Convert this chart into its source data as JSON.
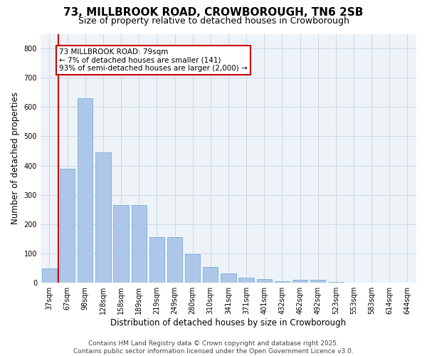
{
  "title_line1": "73, MILLBROOK ROAD, CROWBOROUGH, TN6 2SB",
  "title_line2": "Size of property relative to detached houses in Crowborough",
  "xlabel": "Distribution of detached houses by size in Crowborough",
  "ylabel": "Number of detached properties",
  "categories": [
    "37sqm",
    "67sqm",
    "98sqm",
    "128sqm",
    "158sqm",
    "189sqm",
    "219sqm",
    "249sqm",
    "280sqm",
    "310sqm",
    "341sqm",
    "371sqm",
    "401sqm",
    "432sqm",
    "462sqm",
    "492sqm",
    "523sqm",
    "553sqm",
    "583sqm",
    "614sqm",
    "644sqm"
  ],
  "values": [
    48,
    390,
    630,
    445,
    265,
    265,
    155,
    155,
    97,
    55,
    33,
    18,
    12,
    5,
    10,
    10,
    2,
    0,
    0,
    1,
    0
  ],
  "bar_color": "#aec6e8",
  "bar_edge_color": "#7aaed6",
  "vline_x": 1.0,
  "vline_color": "#cc0000",
  "annotation_text": "73 MILLBROOK ROAD: 79sqm\n← 7% of detached houses are smaller (141)\n93% of semi-detached houses are larger (2,000) →",
  "annotation_box_color": "#cc0000",
  "ylim": [
    0,
    850
  ],
  "yticks": [
    0,
    100,
    200,
    300,
    400,
    500,
    600,
    700,
    800
  ],
  "grid_color": "#c8d8e8",
  "background_color": "#eef3f8",
  "footer_text": "Contains HM Land Registry data © Crown copyright and database right 2025.\nContains public sector information licensed under the Open Government Licence v3.0.",
  "title_fontsize": 11,
  "subtitle_fontsize": 9,
  "axis_label_fontsize": 8.5,
  "tick_fontsize": 7,
  "annotation_fontsize": 7.5,
  "footer_fontsize": 6.5
}
